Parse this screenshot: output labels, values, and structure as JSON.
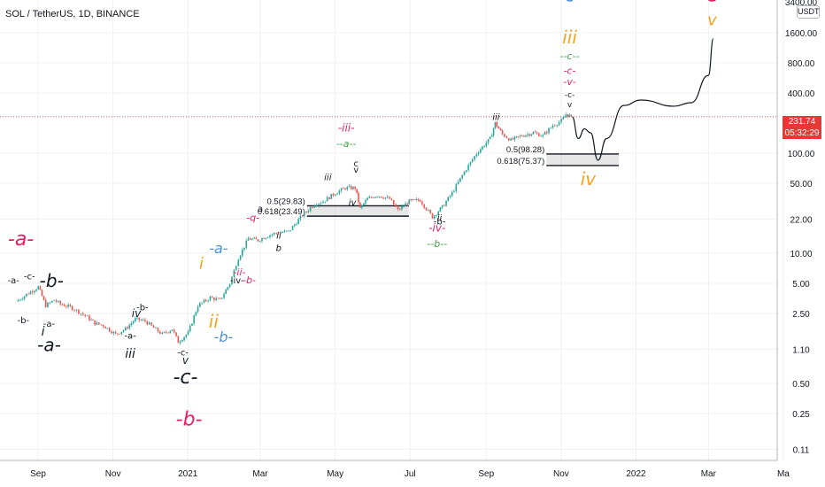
{
  "header": {
    "title": "SOL / TetherUS, 1D, BINANCE",
    "unit": "USDT",
    "axis_top_cut": "3400.00"
  },
  "price_tags": {
    "current": "231.74",
    "countdown": "05:32:29"
  },
  "colors": {
    "up": "#26a69a",
    "down": "#ef5350",
    "magenta": "#e91e63",
    "blue": "#4a90d9",
    "orange": "#f5a31a",
    "green": "#43a047",
    "black": "#131722",
    "price_line": "#e53935",
    "grid": "#eef0f3"
  },
  "chart_data": {
    "type": "candlestick",
    "x_tick_labels": [
      "Sep",
      "Nov",
      "2021",
      "Mar",
      "May",
      "Jul",
      "Sep",
      "Nov",
      "2022",
      "Mar",
      "Ma"
    ],
    "y_scale": "log",
    "y_tick_labels": [
      "3400.00",
      "1600.00",
      "800.00",
      "400.00",
      "231.74",
      "100.00",
      "50.00",
      "22.00",
      "10.00",
      "5.00",
      "2.50",
      "1.10",
      "0.50",
      "0.25",
      "0.11"
    ],
    "y_ticks": [
      1600,
      800,
      400,
      100,
      50,
      22,
      10,
      5,
      2.5,
      1.1,
      0.5,
      0.25,
      0.11
    ],
    "current_price": 231.74,
    "price_path": [
      [
        "2020-08-15",
        3.3
      ],
      [
        "2020-08-25",
        4.0
      ],
      [
        "2020-09-02",
        4.6
      ],
      [
        "2020-09-08",
        3.0
      ],
      [
        "2020-09-15",
        3.4
      ],
      [
        "2020-09-20",
        3.1
      ],
      [
        "2020-09-28",
        2.9
      ],
      [
        "2020-10-05",
        2.6
      ],
      [
        "2020-10-12",
        2.3
      ],
      [
        "2020-10-18",
        2.0
      ],
      [
        "2020-10-25",
        1.9
      ],
      [
        "2020-11-04",
        1.55
      ],
      [
        "2020-11-12",
        1.75
      ],
      [
        "2020-11-20",
        2.2
      ],
      [
        "2020-11-28",
        2.1
      ],
      [
        "2020-12-05",
        1.8
      ],
      [
        "2020-12-12",
        1.55
      ],
      [
        "2020-12-20",
        1.75
      ],
      [
        "2020-12-25",
        1.3
      ],
      [
        "2021-01-02",
        1.6
      ],
      [
        "2021-01-10",
        3.0
      ],
      [
        "2021-01-20",
        3.6
      ],
      [
        "2021-01-28",
        3.4
      ],
      [
        "2021-02-05",
        5.0
      ],
      [
        "2021-02-12",
        9.0
      ],
      [
        "2021-02-20",
        14.0
      ],
      [
        "2021-02-28",
        13.5
      ],
      [
        "2021-03-08",
        15.0
      ],
      [
        "2021-03-15",
        16.0
      ],
      [
        "2021-03-25",
        16.5
      ],
      [
        "2021-04-05",
        24.0
      ],
      [
        "2021-04-15",
        31.0
      ],
      [
        "2021-04-22",
        33.0
      ],
      [
        "2021-05-02",
        40.0
      ],
      [
        "2021-05-10",
        45.0
      ],
      [
        "2021-05-18",
        45.0
      ],
      [
        "2021-05-22",
        28.0
      ],
      [
        "2021-05-28",
        35.0
      ],
      [
        "2021-06-05",
        38.0
      ],
      [
        "2021-06-15",
        35.0
      ],
      [
        "2021-06-22",
        27.0
      ],
      [
        "2021-07-01",
        33.0
      ],
      [
        "2021-07-10",
        34.0
      ],
      [
        "2021-07-20",
        23.0
      ],
      [
        "2021-07-28",
        29.0
      ],
      [
        "2021-08-05",
        40.0
      ],
      [
        "2021-08-15",
        65.0
      ],
      [
        "2021-08-25",
        100.0
      ],
      [
        "2021-09-05",
        140.0
      ],
      [
        "2021-09-09",
        200.0
      ],
      [
        "2021-09-15",
        155.0
      ],
      [
        "2021-09-22",
        135.0
      ],
      [
        "2021-10-01",
        150.0
      ],
      [
        "2021-10-10",
        160.0
      ],
      [
        "2021-10-18",
        150.0
      ],
      [
        "2021-10-26",
        190.0
      ],
      [
        "2021-11-02",
        210.0
      ],
      [
        "2021-11-06",
        245.0
      ],
      [
        "2021-11-10",
        231.74
      ]
    ],
    "projection_path": [
      [
        "2021-11-10",
        231.74
      ],
      [
        "2021-11-15",
        140.0
      ],
      [
        "2021-11-20",
        175.0
      ],
      [
        "2021-11-25",
        160.0
      ],
      [
        "2021-12-01",
        85.0
      ],
      [
        "2021-12-08",
        140.0
      ],
      [
        "2021-12-22",
        300.0
      ],
      [
        "2022-01-05",
        340.0
      ],
      [
        "2022-02-01",
        295.0
      ],
      [
        "2022-02-15",
        320.0
      ],
      [
        "2022-03-01",
        600.0
      ],
      [
        "2022-03-05",
        1400.0
      ]
    ],
    "fib_zones": [
      {
        "start": "2021-04-08",
        "end": "2021-06-30",
        "top": 29.83,
        "bottom": 23.49,
        "label_top": "0.5(29.83)",
        "label_bottom": "0.618(23.49)"
      },
      {
        "start": "2021-10-20",
        "end": "2021-12-18",
        "top": 98.28,
        "bottom": 75.37,
        "label_top": "0.5(98.28)",
        "label_bottom": "0.618(75.37)"
      }
    ],
    "wave_labels": [
      {
        "text": "-a-",
        "date": "2020-08-18",
        "price": 12.0,
        "color": "magenta",
        "size": 22,
        "style": "italic"
      },
      {
        "text": "-b-",
        "date": "2020-09-12",
        "price": 4.6,
        "color": "black",
        "size": 20,
        "style": "italic"
      },
      {
        "text": "-a-",
        "date": "2020-09-10",
        "price": 1.05,
        "color": "black",
        "size": 20,
        "style": "italic"
      },
      {
        "text": "-c-",
        "date": "2020-12-30",
        "price": 0.5,
        "color": "black",
        "size": 22,
        "style": "italic"
      },
      {
        "text": "-b-",
        "date": "2021-01-02",
        "price": 0.19,
        "color": "magenta",
        "size": 22,
        "style": "italic"
      },
      {
        "text": "i",
        "date": "2020-09-05",
        "price": 1.5,
        "color": "black",
        "size": 14,
        "style": "italic"
      },
      {
        "text": "iii",
        "date": "2020-11-15",
        "price": 0.9,
        "color": "black",
        "size": 14,
        "style": "italic"
      },
      {
        "text": "iv",
        "date": "2020-11-20",
        "price": 2.3,
        "color": "black",
        "size": 12,
        "style": "italic"
      },
      {
        "text": "-a-",
        "date": "2020-08-12",
        "price": 5.0,
        "color": "black",
        "size": 10,
        "style": "normal"
      },
      {
        "text": "-c-",
        "date": "2020-08-25",
        "price": 5.5,
        "color": "black",
        "size": 10,
        "style": "normal"
      },
      {
        "text": "-b-",
        "date": "2020-08-20",
        "price": 2.0,
        "color": "black",
        "size": 10,
        "style": "normal"
      },
      {
        "text": "-a-",
        "date": "2020-09-10",
        "price": 1.85,
        "color": "black",
        "size": 10,
        "style": "normal"
      },
      {
        "text": "-b-",
        "date": "2020-11-25",
        "price": 2.7,
        "color": "black",
        "size": 10,
        "style": "normal"
      },
      {
        "text": "-a-",
        "date": "2020-11-15",
        "price": 1.4,
        "color": "black",
        "size": 10,
        "style": "normal"
      },
      {
        "text": "-c-",
        "date": "2020-12-28",
        "price": 0.95,
        "color": "black",
        "size": 10,
        "style": "normal"
      },
      {
        "text": "v",
        "date": "2020-12-30",
        "price": 0.78,
        "color": "black",
        "size": 12,
        "style": "italic"
      },
      {
        "text": "i",
        "date": "2021-01-12",
        "price": 7.0,
        "color": "orange",
        "size": 18,
        "style": "italic"
      },
      {
        "text": "ii",
        "date": "2021-01-22",
        "price": 1.8,
        "color": "orange",
        "size": 20,
        "style": "italic"
      },
      {
        "text": "-a-",
        "date": "2021-01-26",
        "price": 10.0,
        "color": "blue",
        "size": 16,
        "style": "italic"
      },
      {
        "text": "-b-",
        "date": "2021-01-30",
        "price": 1.3,
        "color": "blue",
        "size": 16,
        "style": "italic"
      },
      {
        "text": "-ii-",
        "date": "2021-02-12",
        "price": 6.0,
        "color": "magenta",
        "size": 11,
        "style": "italic"
      },
      {
        "text": "-b-",
        "date": "2021-02-20",
        "price": 5.0,
        "color": "magenta",
        "size": 11,
        "style": "italic"
      },
      {
        "text": "-q-",
        "date": "2021-02-23",
        "price": 21.0,
        "color": "magenta",
        "size": 11,
        "style": "italic"
      },
      {
        "text": "a",
        "date": "2021-03-01",
        "price": 26.0,
        "color": "black",
        "size": 10,
        "style": "normal"
      },
      {
        "text": "-iv-",
        "date": "2021-02-10",
        "price": 5.0,
        "color": "black",
        "size": 10,
        "style": "normal"
      },
      {
        "text": "ii",
        "date": "2021-03-16",
        "price": 14.0,
        "color": "black",
        "size": 10,
        "style": "italic"
      },
      {
        "text": "b",
        "date": "2021-03-16",
        "price": 10.5,
        "color": "black",
        "size": 10,
        "style": "italic"
      },
      {
        "text": "-iii-",
        "date": "2021-05-10",
        "price": 165.0,
        "color": "magenta",
        "size": 12,
        "style": "italic"
      },
      {
        "text": "--a--",
        "date": "2021-05-10",
        "price": 115.0,
        "color": "green",
        "size": 11,
        "style": "italic"
      },
      {
        "text": "c",
        "date": "2021-05-18",
        "price": 74.0,
        "color": "black",
        "size": 10,
        "style": "normal"
      },
      {
        "text": "v",
        "date": "2021-05-18",
        "price": 64.0,
        "color": "black",
        "size": 10,
        "style": "normal"
      },
      {
        "text": "iii",
        "date": "2021-04-25",
        "price": 54.0,
        "color": "black",
        "size": 10,
        "style": "italic"
      },
      {
        "text": "iv",
        "date": "2021-05-15",
        "price": 30.0,
        "color": "black",
        "size": 10,
        "style": "italic"
      },
      {
        "text": "-iv-",
        "date": "2021-07-23",
        "price": 16.5,
        "color": "magenta",
        "size": 12,
        "style": "italic"
      },
      {
        "text": "--b--",
        "date": "2021-07-23",
        "price": 11.5,
        "color": "green",
        "size": 11,
        "style": "italic"
      },
      {
        "text": "ii",
        "date": "2021-07-25",
        "price": 21.0,
        "color": "black",
        "size": 10,
        "style": "italic"
      },
      {
        "text": "-b-",
        "date": "2021-07-25",
        "price": 19.5,
        "color": "black",
        "size": 10,
        "style": "normal"
      },
      {
        "text": "iii",
        "date": "2021-09-09",
        "price": 215.0,
        "color": "black",
        "size": 10,
        "style": "italic"
      },
      {
        "text": "-c-",
        "date": "2021-11-08",
        "price": 3300.0,
        "color": "blue",
        "size": 20,
        "style": "italic"
      },
      {
        "text": "iii",
        "date": "2021-11-08",
        "price": 1250.0,
        "color": "orange",
        "size": 20,
        "style": "italic"
      },
      {
        "text": "--c--",
        "date": "2021-11-08",
        "price": 870.0,
        "color": "green",
        "size": 11,
        "style": "italic"
      },
      {
        "text": "-c-",
        "date": "2021-11-08",
        "price": 620.0,
        "color": "magenta",
        "size": 11,
        "style": "italic"
      },
      {
        "text": "-v-",
        "date": "2021-11-08",
        "price": 480.0,
        "color": "magenta",
        "size": 11,
        "style": "italic"
      },
      {
        "text": "-c-",
        "date": "2021-11-08",
        "price": 360.0,
        "color": "black",
        "size": 9,
        "style": "normal"
      },
      {
        "text": "v",
        "date": "2021-11-08",
        "price": 290.0,
        "color": "black",
        "size": 9,
        "style": "normal"
      },
      {
        "text": "iv",
        "date": "2021-11-23",
        "price": 48.0,
        "color": "orange",
        "size": 20,
        "style": "italic"
      },
      {
        "text": "-c-",
        "date": "2022-03-04",
        "price": 3300.0,
        "color": "magenta",
        "size": 24,
        "style": "italic"
      },
      {
        "text": "v",
        "date": "2022-03-04",
        "price": 1900.0,
        "color": "orange",
        "size": 18,
        "style": "italic"
      }
    ]
  }
}
